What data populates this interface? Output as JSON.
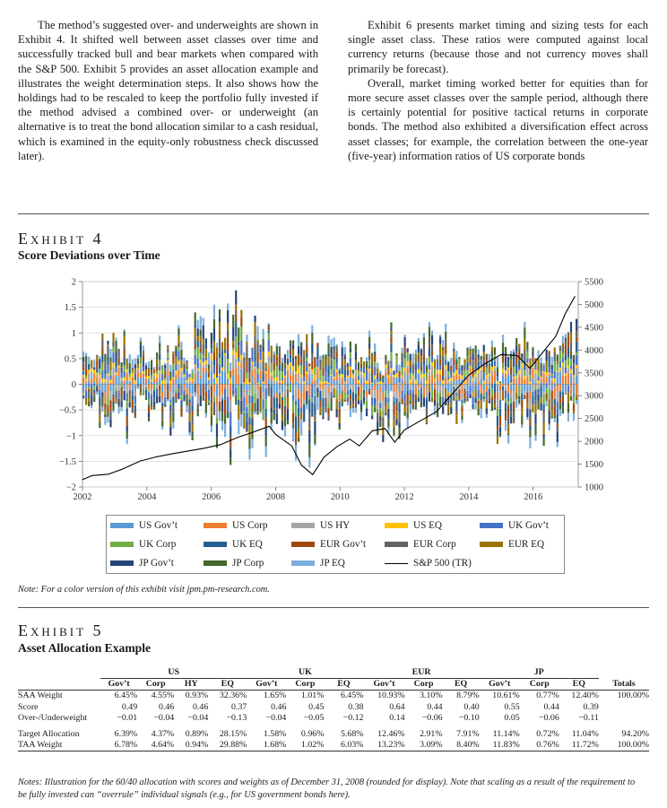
{
  "body_text": {
    "left_column": [
      "The method’s suggested over- and underweights are shown in Exhibit 4. It shifted well between asset classes over time and successfully tracked bull and bear markets when compared with the S&P 500. Exhibit 5 provides an asset allocation example and illustrates the weight determination steps. It also shows how the holdings had to be rescaled to keep the portfolio fully invested if the method advised a combined over- or underweight (an alternative is to treat the bond allocation similar to a cash residual, which is examined in the equity-only robustness check discussed later)."
    ],
    "right_column": [
      "Exhibit 6 presents market timing and sizing tests for each single asset class. These ratios were computed against local currency returns (because those and not currency moves shall primarily be forecast).",
      "Overall, market timing worked better for equities than for more secure asset classes over the sample period, although there is certainly potential for positive tactical returns in corporate bonds. The method also exhibited a diversification effect across asset classes; for example, the correlation between the one-year (five-year) information ratios of US corporate bonds"
    ]
  },
  "exhibit4": {
    "label": "Exhibit 4",
    "title": "Score Deviations over Time",
    "note": "Note: For a color version of this exhibit visit jpm.pm-research.com."
  },
  "chart_data": {
    "type": "bar",
    "stacked": true,
    "title": "Score Deviations over Time",
    "x_ticks": [
      "2002",
      "2004",
      "2006",
      "2008",
      "2010",
      "2012",
      "2014",
      "2016"
    ],
    "xlim": [
      2002,
      2017.4
    ],
    "y_left_ticks": [
      "2",
      "1.5",
      "1",
      "0.5",
      "0",
      "−0.5",
      "−1",
      "−1.5",
      "−2"
    ],
    "ylim_left": [
      -2,
      2
    ],
    "y_right_ticks": [
      "5500",
      "5000",
      "4500",
      "4000",
      "3500",
      "3000",
      "2500",
      "2000",
      "1500",
      "1000"
    ],
    "ylim_right": [
      1000,
      5500
    ],
    "grid": true,
    "legend_placement": "below",
    "series": [
      {
        "name": "US Gov’t",
        "color": "#5b9bd5"
      },
      {
        "name": "US Corp",
        "color": "#ed7d31"
      },
      {
        "name": "US HY",
        "color": "#a5a5a5"
      },
      {
        "name": "US EQ",
        "color": "#ffc000"
      },
      {
        "name": "UK Gov’t",
        "color": "#4472c4"
      },
      {
        "name": "UK Corp",
        "color": "#70ad47"
      },
      {
        "name": "UK EQ",
        "color": "#255e91"
      },
      {
        "name": "EUR Gov’t",
        "color": "#9e480e"
      },
      {
        "name": "EUR Corp",
        "color": "#636363"
      },
      {
        "name": "EUR EQ",
        "color": "#997300"
      },
      {
        "name": "JP Gov’t",
        "color": "#264478"
      },
      {
        "name": "JP Corp",
        "color": "#43682b"
      },
      {
        "name": "JP EQ",
        "color": "#7cafdd"
      }
    ],
    "line_series": {
      "name": "S&P 500 (TR)",
      "color": "#000000",
      "axis": "right",
      "points": [
        [
          2002.0,
          1160
        ],
        [
          2002.3,
          1250
        ],
        [
          2002.8,
          1280
        ],
        [
          2003.2,
          1380
        ],
        [
          2003.8,
          1570
        ],
        [
          2004.3,
          1660
        ],
        [
          2004.8,
          1730
        ],
        [
          2005.3,
          1790
        ],
        [
          2005.8,
          1850
        ],
        [
          2006.3,
          1930
        ],
        [
          2006.8,
          2080
        ],
        [
          2007.3,
          2200
        ],
        [
          2007.8,
          2330
        ],
        [
          2008.0,
          2150
        ],
        [
          2008.5,
          1900
        ],
        [
          2008.8,
          1480
        ],
        [
          2009.15,
          1270
        ],
        [
          2009.5,
          1650
        ],
        [
          2009.9,
          1880
        ],
        [
          2010.3,
          2050
        ],
        [
          2010.6,
          1900
        ],
        [
          2011.0,
          2230
        ],
        [
          2011.4,
          2280
        ],
        [
          2011.7,
          1980
        ],
        [
          2012.0,
          2250
        ],
        [
          2012.5,
          2450
        ],
        [
          2013.0,
          2650
        ],
        [
          2013.5,
          3050
        ],
        [
          2014.0,
          3450
        ],
        [
          2014.5,
          3700
        ],
        [
          2015.0,
          3900
        ],
        [
          2015.5,
          3880
        ],
        [
          2015.9,
          3600
        ],
        [
          2016.3,
          3950
        ],
        [
          2016.7,
          4300
        ],
        [
          2017.0,
          4800
        ],
        [
          2017.3,
          5180
        ]
      ]
    }
  },
  "exhibit5": {
    "label": "Exhibit 5",
    "title": "Asset Allocation Example",
    "groups": [
      "US",
      "UK",
      "EUR",
      "JP"
    ],
    "columns": [
      "Gov’t",
      "Corp",
      "HY",
      "EQ",
      "Gov’t",
      "Corp",
      "EQ",
      "Gov’t",
      "Corp",
      "EQ",
      "Gov’t",
      "Corp",
      "EQ",
      "Totals"
    ],
    "rows": [
      {
        "label": "SAA Weight",
        "values": [
          "6.45%",
          "4.55%",
          "0.93%",
          "32.36%",
          "1.65%",
          "1.01%",
          "6.45%",
          "10.93%",
          "3.10%",
          "8.79%",
          "10.61%",
          "0.77%",
          "12.40%",
          "100.00%"
        ]
      },
      {
        "label": "Score",
        "values": [
          "0.49",
          "0.46",
          "0.46",
          "0.37",
          "0.46",
          "0.45",
          "0.38",
          "0.64",
          "0.44",
          "0.40",
          "0.55",
          "0.44",
          "0.39",
          ""
        ]
      },
      {
        "label": "Over-/Underweight",
        "values": [
          "−0.01",
          "−0.04",
          "−0.04",
          "−0.13",
          "−0.04",
          "−0.05",
          "−0.12",
          "0.14",
          "−0.06",
          "−0.10",
          "0.05",
          "−0.06",
          "−0.11",
          ""
        ]
      },
      {
        "label": "Target Allocation",
        "values": [
          "6.39%",
          "4.37%",
          "0.89%",
          "28.15%",
          "1.58%",
          "0.96%",
          "5.68%",
          "12.46%",
          "2.91%",
          "7.91%",
          "11.14%",
          "0.72%",
          "11.04%",
          "94.20%"
        ]
      },
      {
        "label": "TAA Weight",
        "values": [
          "6.78%",
          "4.64%",
          "0.94%",
          "29.88%",
          "1.68%",
          "1.02%",
          "6.03%",
          "13.23%",
          "3.09%",
          "8.40%",
          "11.83%",
          "0.76%",
          "11.72%",
          "100.00%"
        ]
      }
    ],
    "note": "Notes: Illustration for the 60/40 allocation with scores and weights as of December 31, 2008 (rounded for display). Note that scaling as a result of the requirement to be fully invested can “overrule” individual signals (e.g., for US government bonds here)."
  }
}
